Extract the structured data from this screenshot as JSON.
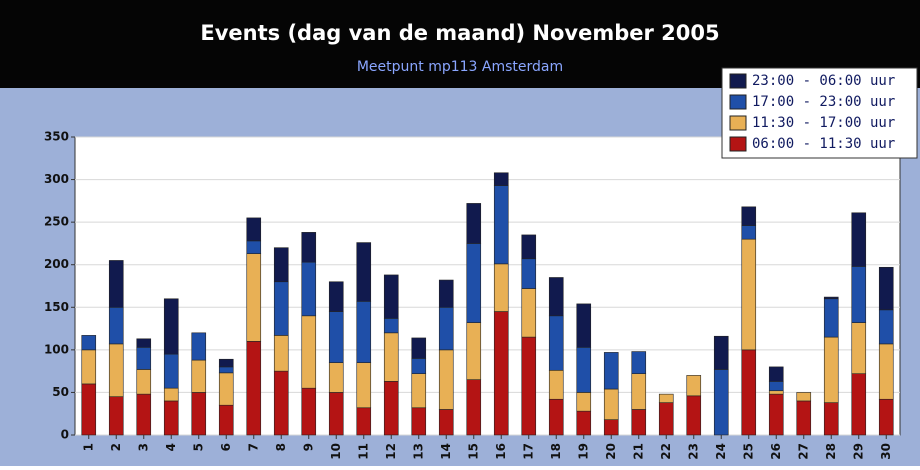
{
  "chart_data": {
    "type": "stacked_bar",
    "title": "Events (dag van de maand) November 2005",
    "subtitle": "Meetpunt mp113 Amsterdam",
    "categories": [
      "1",
      "2",
      "3",
      "4",
      "5",
      "6",
      "7",
      "8",
      "9",
      "10",
      "11",
      "12",
      "13",
      "14",
      "15",
      "16",
      "17",
      "18",
      "19",
      "20",
      "21",
      "22",
      "23",
      "24",
      "25",
      "26",
      "27",
      "28",
      "29",
      "30"
    ],
    "series": [
      {
        "name": "06:00 - 11:30 uur",
        "color": "#b41414",
        "values": [
          60,
          45,
          48,
          40,
          50,
          35,
          110,
          75,
          55,
          50,
          32,
          63,
          32,
          30,
          65,
          145,
          115,
          42,
          28,
          18,
          30,
          38,
          46,
          0,
          100,
          48,
          40,
          38,
          72,
          42
        ]
      },
      {
        "name": "11:30 - 17:00 uur",
        "color": "#e8b055",
        "values": [
          40,
          62,
          29,
          15,
          38,
          38,
          103,
          42,
          85,
          35,
          53,
          57,
          40,
          70,
          67,
          56,
          57,
          34,
          22,
          36,
          42,
          10,
          24,
          0,
          130,
          4,
          10,
          77,
          60,
          65
        ]
      },
      {
        "name": "17:00 - 23:00 uur",
        "color": "#1f4fa8",
        "values": [
          17,
          43,
          26,
          40,
          32,
          7,
          15,
          63,
          63,
          60,
          72,
          17,
          18,
          50,
          93,
          92,
          35,
          64,
          53,
          43,
          26,
          0,
          0,
          77,
          16,
          11,
          0,
          45,
          66,
          40
        ]
      },
      {
        "name": "23:00 - 06:00 uur",
        "color": "#111a4e",
        "values": [
          0,
          55,
          10,
          65,
          0,
          9,
          27,
          40,
          35,
          35,
          69,
          51,
          24,
          32,
          47,
          15,
          28,
          45,
          51,
          0,
          0,
          0,
          0,
          39,
          22,
          17,
          0,
          2,
          63,
          50
        ]
      }
    ],
    "ylim": [
      0,
      350
    ],
    "yticks": [
      0,
      50,
      100,
      150,
      200,
      250,
      300,
      350
    ],
    "grid": true,
    "legend": "top-right"
  }
}
